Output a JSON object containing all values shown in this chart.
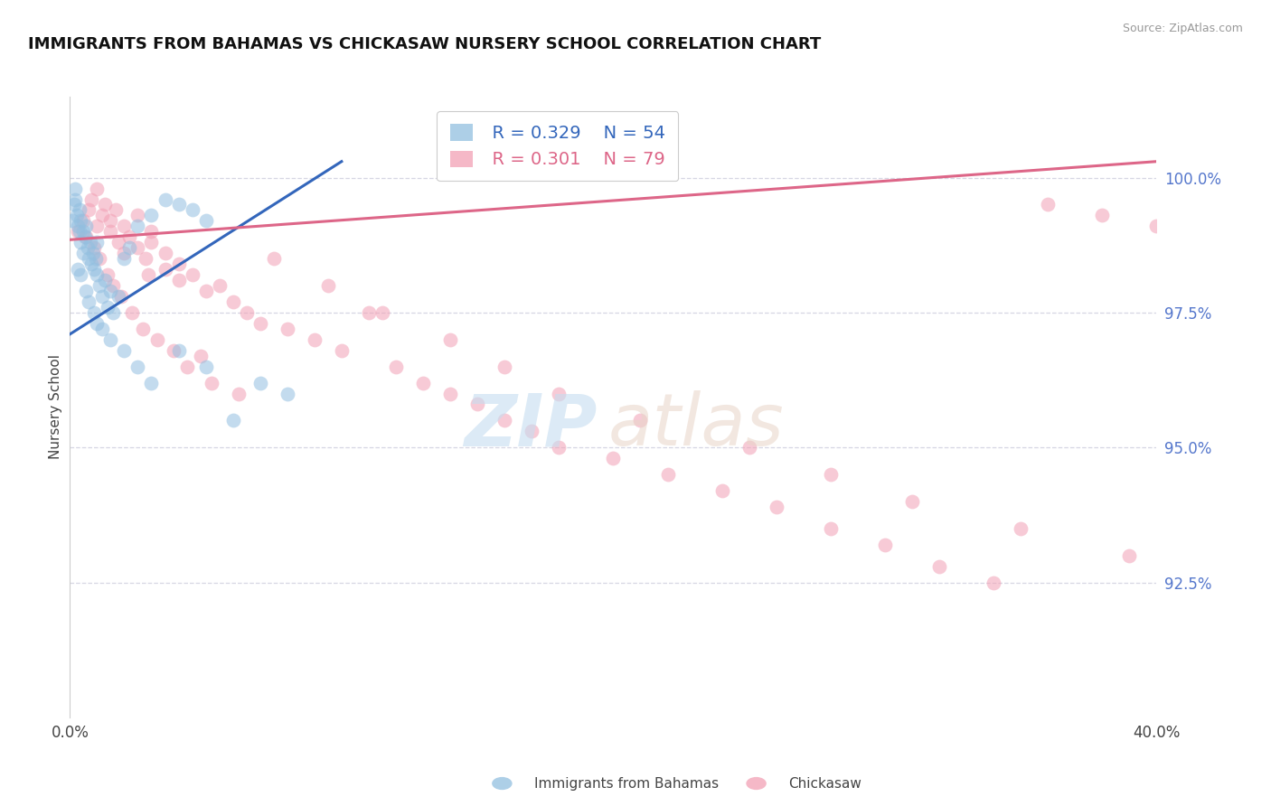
{
  "title": "IMMIGRANTS FROM BAHAMAS VS CHICKASAW NURSERY SCHOOL CORRELATION CHART",
  "source": "Source: ZipAtlas.com",
  "ylabel": "Nursery School",
  "yticks": [
    92.5,
    95.0,
    97.5,
    100.0
  ],
  "ytick_labels": [
    "92.5%",
    "95.0%",
    "97.5%",
    "100.0%"
  ],
  "xlim": [
    0.0,
    40.0
  ],
  "ylim": [
    90.0,
    101.5
  ],
  "legend_R_blue": "R = 0.329",
  "legend_N_blue": "N = 54",
  "legend_R_pink": "R = 0.301",
  "legend_N_pink": "N = 79",
  "blue_label": "Immigrants from Bahamas",
  "pink_label": "Chickasaw",
  "blue_color": "#92bfe0",
  "pink_color": "#f2a0b5",
  "blue_line_color": "#3366bb",
  "pink_line_color": "#dd6688",
  "grid_color": "#ccccdd",
  "title_color": "#111111",
  "ytick_color": "#5577cc",
  "watermark_zip_color": "#c5ddf0",
  "watermark_atlas_color": "#e8d5c8",
  "blue_line_x0": 0.0,
  "blue_line_y0": 97.1,
  "blue_line_x1": 10.0,
  "blue_line_y1": 100.3,
  "pink_line_x0": 0.0,
  "pink_line_y0": 98.85,
  "pink_line_x1": 40.0,
  "pink_line_y1": 100.3,
  "blue_points_x": [
    0.1,
    0.15,
    0.2,
    0.2,
    0.25,
    0.3,
    0.35,
    0.35,
    0.4,
    0.4,
    0.5,
    0.5,
    0.55,
    0.6,
    0.65,
    0.7,
    0.75,
    0.8,
    0.85,
    0.9,
    0.95,
    1.0,
    1.0,
    1.1,
    1.2,
    1.3,
    1.4,
    1.5,
    1.6,
    1.8,
    2.0,
    2.2,
    2.5,
    3.0,
    3.5,
    4.0,
    4.5,
    5.0,
    0.3,
    0.6,
    0.9,
    1.2,
    1.5,
    2.0,
    2.5,
    3.0,
    4.0,
    5.0,
    6.0,
    7.0,
    0.4,
    0.7,
    1.0,
    8.0
  ],
  "blue_points_y": [
    99.2,
    99.5,
    99.6,
    99.8,
    99.3,
    99.1,
    99.4,
    99.0,
    98.8,
    99.2,
    98.6,
    99.0,
    98.9,
    99.1,
    98.7,
    98.5,
    98.8,
    98.4,
    98.6,
    98.3,
    98.5,
    98.2,
    98.8,
    98.0,
    97.8,
    98.1,
    97.6,
    97.9,
    97.5,
    97.8,
    98.5,
    98.7,
    99.1,
    99.3,
    99.6,
    99.5,
    99.4,
    99.2,
    98.3,
    97.9,
    97.5,
    97.2,
    97.0,
    96.8,
    96.5,
    96.2,
    96.8,
    96.5,
    95.5,
    96.2,
    98.2,
    97.7,
    97.3,
    96.0
  ],
  "pink_points_x": [
    0.3,
    0.5,
    0.7,
    0.8,
    1.0,
    1.0,
    1.2,
    1.3,
    1.5,
    1.5,
    1.8,
    2.0,
    2.0,
    2.2,
    2.5,
    2.5,
    2.8,
    3.0,
    3.0,
    3.5,
    3.5,
    4.0,
    4.0,
    4.5,
    5.0,
    5.5,
    6.0,
    6.5,
    7.0,
    8.0,
    9.0,
    10.0,
    11.0,
    12.0,
    13.0,
    14.0,
    15.0,
    16.0,
    17.0,
    18.0,
    20.0,
    22.0,
    24.0,
    26.0,
    28.0,
    30.0,
    32.0,
    34.0,
    36.0,
    38.0,
    40.0,
    0.6,
    0.9,
    1.1,
    1.4,
    1.6,
    1.9,
    2.3,
    2.7,
    3.2,
    3.8,
    4.3,
    5.2,
    6.2,
    7.5,
    9.5,
    11.5,
    14.0,
    16.0,
    18.0,
    21.0,
    25.0,
    28.0,
    31.0,
    35.0,
    39.0,
    1.7,
    2.9,
    4.8
  ],
  "pink_points_y": [
    99.0,
    99.2,
    99.4,
    99.6,
    99.1,
    99.8,
    99.3,
    99.5,
    99.2,
    99.0,
    98.8,
    99.1,
    98.6,
    98.9,
    98.7,
    99.3,
    98.5,
    98.8,
    99.0,
    98.3,
    98.6,
    98.1,
    98.4,
    98.2,
    97.9,
    98.0,
    97.7,
    97.5,
    97.3,
    97.2,
    97.0,
    96.8,
    97.5,
    96.5,
    96.2,
    96.0,
    95.8,
    95.5,
    95.3,
    95.0,
    94.8,
    94.5,
    94.2,
    93.9,
    93.5,
    93.2,
    92.8,
    92.5,
    99.5,
    99.3,
    99.1,
    98.9,
    98.7,
    98.5,
    98.2,
    98.0,
    97.8,
    97.5,
    97.2,
    97.0,
    96.8,
    96.5,
    96.2,
    96.0,
    98.5,
    98.0,
    97.5,
    97.0,
    96.5,
    96.0,
    95.5,
    95.0,
    94.5,
    94.0,
    93.5,
    93.0,
    99.4,
    98.2,
    96.7
  ]
}
